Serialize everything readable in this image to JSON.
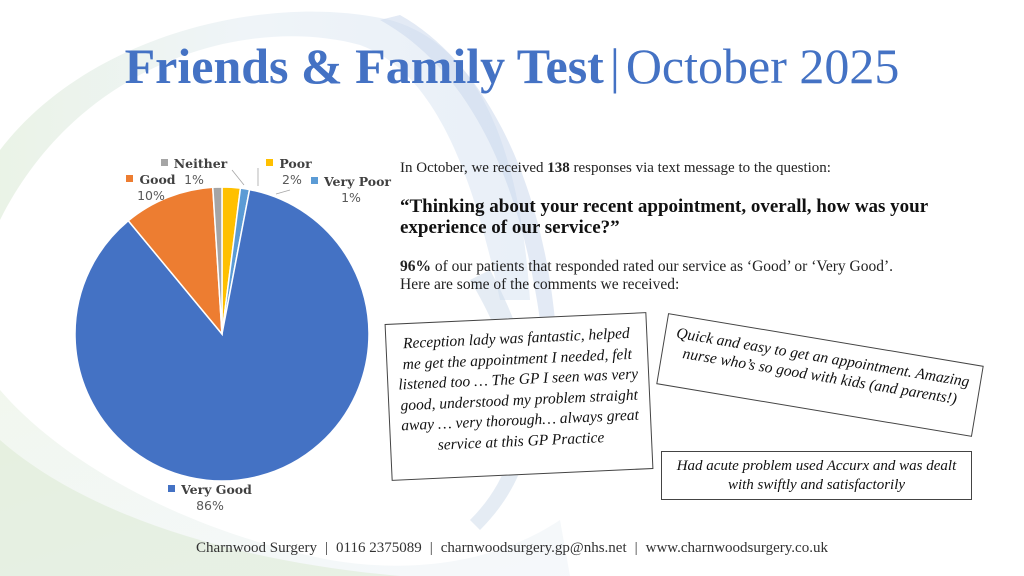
{
  "title": {
    "bold_part": "Friends & Family Test",
    "separator": "|",
    "light_part": "October 2025"
  },
  "colors": {
    "accent": "#4472c4",
    "very_good": "#4472c4",
    "good": "#ed7d31",
    "neither": "#a5a5a5",
    "poor": "#ffc000",
    "very_poor": "#5b9bd5"
  },
  "chart_data": {
    "type": "pie",
    "title": "",
    "categories": [
      "Very Good",
      "Good",
      "Neither",
      "Poor",
      "Very Poor"
    ],
    "values": [
      86,
      10,
      1,
      2,
      1
    ],
    "labels": [
      "86%",
      "10%",
      "1%",
      "2%",
      "1%"
    ],
    "legend_position": "data labels (category name + percentage)"
  },
  "labels": {
    "very_good": {
      "name": "Very Good",
      "pct": "86%"
    },
    "good": {
      "name": "Good",
      "pct": "10%"
    },
    "neither": {
      "name": "Neither",
      "pct": "1%"
    },
    "poor": {
      "name": "Poor",
      "pct": "2%"
    },
    "very_poor": {
      "name": "Very Poor",
      "pct": "1%"
    }
  },
  "intro": {
    "before": "In October, we received ",
    "count": "138",
    "after": " responses via text message to the question:"
  },
  "question": "“Thinking about your recent appointment, overall, how was your experience of our service?”",
  "summary": {
    "pct": "96%",
    "line1_rest": " of our patients that responded rated our service as ‘Good’ or ‘Very Good’.",
    "line2": "Here are some of the comments we received:"
  },
  "comments": [
    "Reception lady was fantastic, helped me get the appointment I needed, felt listened too … The GP I seen was very good, understood my problem straight away … very thorough… always great service at this GP Practice",
    "Quick and easy to get an appointment. Amazing nurse who’s so good with kids (and parents!)",
    "Had acute problem used Accurx and was dealt with swiftly and satisfactorily"
  ],
  "footer": {
    "name": "Charnwood Surgery",
    "phone": "0116 2375089",
    "email": "charnwoodsurgery.gp@nhs.net",
    "website": "www.charnwoodsurgery.co.uk",
    "separator": "|"
  }
}
